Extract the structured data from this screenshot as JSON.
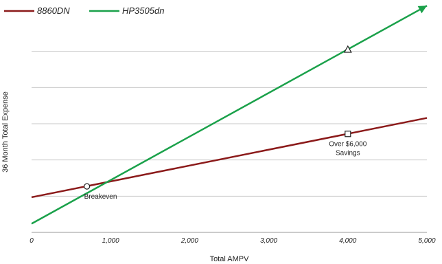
{
  "chart_data": {
    "type": "line",
    "title": "",
    "xlabel": "Total AMPV",
    "ylabel": "36 Month Total Expense",
    "xlim": [
      0,
      5000
    ],
    "ylim": [
      0,
      6
    ],
    "x_ticks": [
      0,
      1000,
      2000,
      3000,
      4000,
      5000
    ],
    "x_tick_labels": [
      "0",
      "1,000",
      "2,000",
      "3,000",
      "4,000",
      "5,000"
    ],
    "y_gridlines": [
      1,
      2,
      3,
      4,
      5
    ],
    "grid": true,
    "legend": "top-left",
    "series": [
      {
        "name": "8860DN",
        "color": "#8b1a1a",
        "x": [
          0,
          5000
        ],
        "y": [
          0.97,
          3.16
        ]
      },
      {
        "name": "HP3505dn",
        "color": "#1aa14a",
        "x": [
          0,
          5000
        ],
        "y": [
          0.24,
          6.26
        ],
        "arrow": true
      }
    ],
    "markers": [
      {
        "shape": "circle",
        "x": 700,
        "y": 1.27
      },
      {
        "shape": "square",
        "x": 4000,
        "y": 2.72
      },
      {
        "shape": "triangle",
        "x": 4000,
        "y": 5.05
      }
    ],
    "annotations": [
      {
        "id": "breakeven",
        "lines": [
          "Breakeven"
        ],
        "x": 700,
        "y": 1.27
      },
      {
        "id": "savings",
        "lines": [
          "Over $6,000",
          "Savings"
        ],
        "x": 4000,
        "y": 2.72
      }
    ]
  }
}
